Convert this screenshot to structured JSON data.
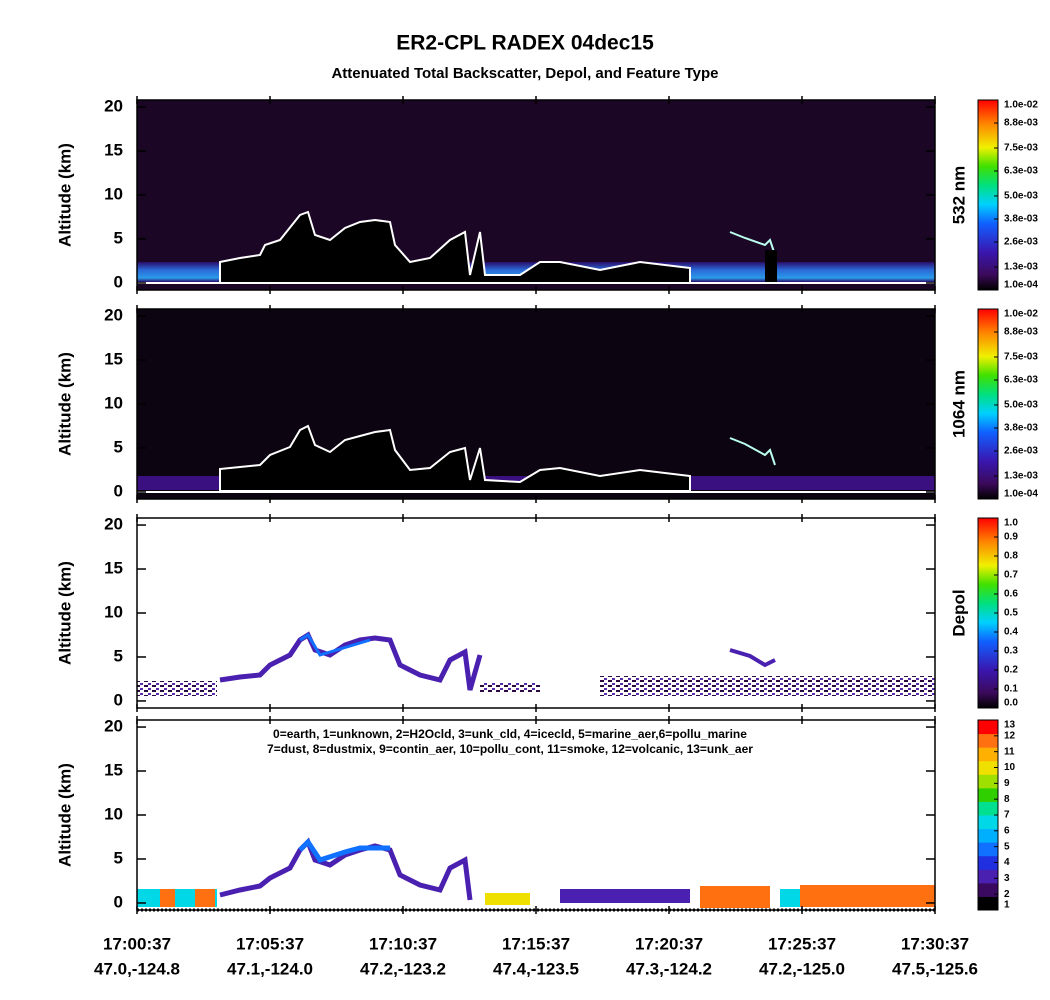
{
  "title": "ER2-CPL RADEX 04dec15",
  "subtitle": "Attenuated Total Backscatter, Depol, and Feature Type",
  "x_ticks": [
    {
      "time": "17:00:37",
      "location": "47.0,-124.8"
    },
    {
      "time": "17:05:37",
      "location": "47.1,-124.0"
    },
    {
      "time": "17:10:37",
      "location": "47.2,-123.2"
    },
    {
      "time": "17:15:37",
      "location": "47.4,-123.5"
    },
    {
      "time": "17:20:37",
      "location": "47.3,-124.2"
    },
    {
      "time": "17:25:37",
      "location": "47.2,-125.0"
    },
    {
      "time": "17:30:37",
      "location": "47.5,-125.6"
    }
  ],
  "panels": [
    {
      "y_label": "Altitude (km)",
      "ylim": [
        -0.8,
        20.8
      ],
      "yticks": [
        0,
        5,
        10,
        15,
        20
      ],
      "colorbar": {
        "label": "532 nm",
        "lim": [
          0.0001,
          0.01
        ],
        "ticks": [
          {
            "value": 0.01,
            "label": "1.0e-02"
          },
          {
            "value": 0.0088,
            "label": "8.8e-03"
          },
          {
            "value": 0.0075,
            "label": "7.5e-03"
          },
          {
            "value": 0.0063,
            "label": "6.3e-03"
          },
          {
            "value": 0.005,
            "label": "5.0e-03"
          },
          {
            "value": 0.0038,
            "label": "3.8e-03"
          },
          {
            "value": 0.0026,
            "label": "2.6e-03"
          },
          {
            "value": 0.0013,
            "label": "1.3e-03"
          },
          {
            "value": 0.0001,
            "label": "1.0e-04"
          }
        ]
      }
    },
    {
      "y_label": "Altitude (km)",
      "ylim": [
        -0.8,
        20.8
      ],
      "yticks": [
        0,
        5,
        10,
        15,
        20
      ],
      "colorbar": {
        "label": "1064 nm",
        "lim": [
          0.0001,
          0.01
        ],
        "ticks": [
          {
            "value": 0.01,
            "label": "1.0e-02"
          },
          {
            "value": 0.0088,
            "label": "8.8e-03"
          },
          {
            "value": 0.0075,
            "label": "7.5e-03"
          },
          {
            "value": 0.0063,
            "label": "6.3e-03"
          },
          {
            "value": 0.005,
            "label": "5.0e-03"
          },
          {
            "value": 0.0038,
            "label": "3.8e-03"
          },
          {
            "value": 0.0026,
            "label": "2.6e-03"
          },
          {
            "value": 0.0013,
            "label": "1.3e-03"
          },
          {
            "value": 0.0001,
            "label": "1.0e-04"
          }
        ]
      }
    },
    {
      "y_label": "Altitude (km)",
      "ylim": [
        -0.8,
        20.8
      ],
      "yticks": [
        0,
        5,
        10,
        15,
        20
      ],
      "colorbar": {
        "label": "Depol",
        "lim": [
          0,
          1
        ],
        "ticks": [
          {
            "value": 1,
            "label": "1.0"
          },
          0.9,
          0.8,
          0.7,
          0.6,
          0.5,
          0.4,
          0.3,
          0.2,
          0.1,
          {
            "value": 0,
            "label": "0.0"
          }
        ]
      }
    },
    {
      "y_label": "Altitude (km)",
      "ylim": [
        -0.8,
        20.8
      ],
      "yticks": [
        0,
        5,
        10,
        15,
        20
      ],
      "legend": [
        "0=earth, 1=unknown, 2=H2Ocld, 3=unk_cld, 4=icecld, 5=marine_aer,6=pollu_marine",
        "7=dust, 8=dustmix, 9=contin_aer, 10=pollu_cont, 11=smoke, 12=volcanic, 13=unk_aer"
      ],
      "colorbar": {
        "lim": [
          1,
          13
        ],
        "ticks": [
          13,
          12,
          11,
          10,
          9,
          8,
          7,
          6,
          5,
          4,
          3,
          2,
          1
        ]
      }
    }
  ]
}
